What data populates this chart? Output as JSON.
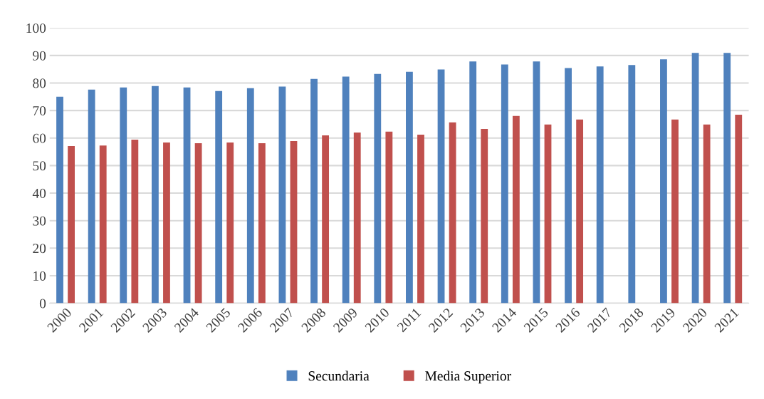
{
  "chart_data": {
    "type": "bar",
    "categories": [
      "2000",
      "2001",
      "2002",
      "2003",
      "2004",
      "2005",
      "2006",
      "2007",
      "2008",
      "2009",
      "2010",
      "2011",
      "2012",
      "2013",
      "2014",
      "2015",
      "2016",
      "2017",
      "2018",
      "2019",
      "2020",
      "2021"
    ],
    "series": [
      {
        "name": "Secundaria",
        "color": "#4f81bd",
        "values": [
          75.0,
          77.6,
          78.4,
          78.9,
          78.4,
          77.1,
          78.1,
          78.7,
          81.5,
          82.3,
          83.3,
          84.1,
          84.9,
          87.8,
          86.7,
          87.8,
          85.4,
          86.0,
          86.5,
          88.6,
          90.9,
          90.9
        ]
      },
      {
        "name": "Media Superior",
        "color": "#c0504d",
        "values": [
          57.1,
          57.3,
          59.4,
          58.4,
          58.1,
          58.4,
          58.1,
          58.9,
          61.0,
          62.0,
          62.3,
          61.2,
          65.7,
          63.3,
          68.0,
          64.9,
          66.7,
          null,
          null,
          66.7,
          64.9,
          68.5
        ]
      }
    ],
    "ylim": [
      0,
      100
    ],
    "yticks": [
      0,
      10,
      20,
      30,
      40,
      50,
      60,
      70,
      80,
      90,
      100
    ],
    "grid": "y",
    "legend": "bottom"
  }
}
